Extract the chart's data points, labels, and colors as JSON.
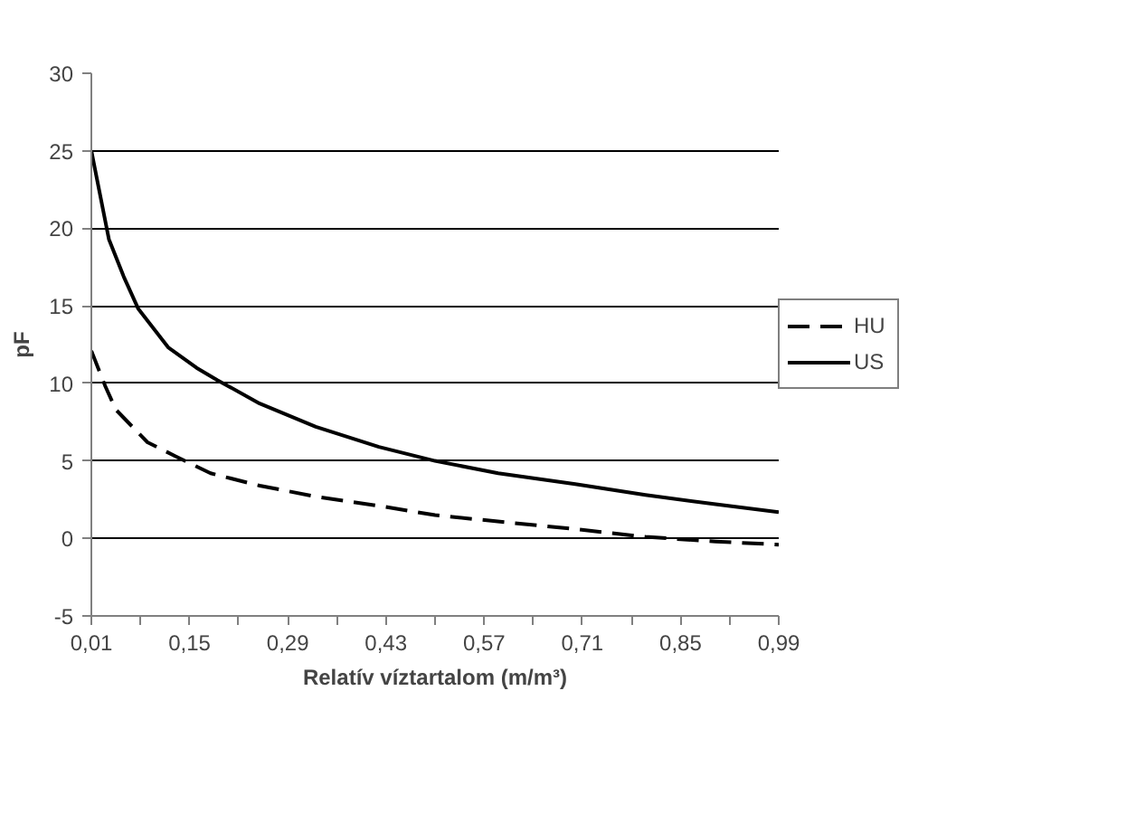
{
  "chart_data": {
    "type": "line",
    "xlabel": "Relatív víztartalom (m/m³)",
    "ylabel": "pF",
    "xlim": [
      0.01,
      0.99
    ],
    "ylim": [
      -5,
      30
    ],
    "yticks": [
      -5,
      0,
      5,
      10,
      15,
      20,
      25,
      30
    ],
    "xticks": [
      {
        "value": 0.01,
        "label": "0,01"
      },
      {
        "value": 0.08,
        "label": null
      },
      {
        "value": 0.15,
        "label": "0,15"
      },
      {
        "value": 0.22,
        "label": null
      },
      {
        "value": 0.29,
        "label": "0,29"
      },
      {
        "value": 0.36,
        "label": null
      },
      {
        "value": 0.43,
        "label": "0,43"
      },
      {
        "value": 0.5,
        "label": null
      },
      {
        "value": 0.57,
        "label": "0,57"
      },
      {
        "value": 0.64,
        "label": null
      },
      {
        "value": 0.71,
        "label": "0,71"
      },
      {
        "value": 0.78,
        "label": null
      },
      {
        "value": 0.85,
        "label": "0,85"
      },
      {
        "value": 0.92,
        "label": null
      },
      {
        "value": 0.99,
        "label": "0,99"
      }
    ],
    "grid": "y",
    "legend": "right",
    "series": [
      {
        "name": "HU",
        "color": "#000000",
        "line_style": "dashed",
        "x": [
          0.01,
          0.03,
          0.045,
          0.09,
          0.13,
          0.18,
          0.25,
          0.33,
          0.42,
          0.5,
          0.61,
          0.7,
          0.8,
          0.9,
          0.99
        ],
        "values": [
          12.1,
          9.8,
          8.3,
          6.2,
          5.3,
          4.2,
          3.4,
          2.7,
          2.1,
          1.5,
          1.0,
          0.6,
          0.1,
          -0.2,
          -0.4
        ]
      },
      {
        "name": "US",
        "color": "#000000",
        "line_style": "solid",
        "x": [
          0.01,
          0.035,
          0.056,
          0.077,
          0.12,
          0.16,
          0.19,
          0.25,
          0.33,
          0.42,
          0.5,
          0.59,
          0.7,
          0.8,
          0.9,
          0.99
        ],
        "values": [
          25,
          19.3,
          16.9,
          14.8,
          12.3,
          11,
          10.2,
          8.7,
          7.2,
          5.9,
          5.0,
          4.2,
          3.5,
          2.8,
          2.2,
          1.7
        ]
      }
    ]
  }
}
